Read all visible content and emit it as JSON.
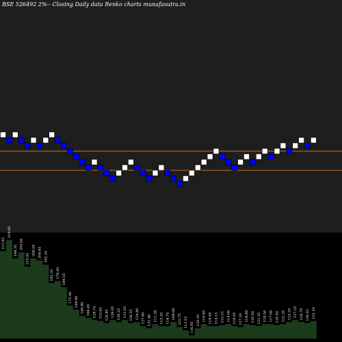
{
  "title": "BSE 526492  2%--  Closing Daily data  Renko  charts munafasutra.in",
  "colors": {
    "background": "#000000",
    "panel": "#1e1e1e",
    "up_brick": "#ffffff",
    "down_brick": "#0000ff",
    "brick_border": "#000000",
    "level_line": "#cc7722",
    "volume_fill": "#1c3a1c",
    "volume_stroke": "#3a7a3a",
    "label_text": "#ffffff"
  },
  "chart_data": [
    {
      "type": "renko",
      "title": "BSE 526492  2%--  Closing Daily data  Renko  charts munafasutra.in",
      "bricks": [
        {
          "d": "up",
          "level": 0
        },
        {
          "d": "down",
          "level": 1
        },
        {
          "d": "up",
          "level": 0
        },
        {
          "d": "down",
          "level": 1
        },
        {
          "d": "down",
          "level": 2
        },
        {
          "d": "up",
          "level": 1
        },
        {
          "d": "down",
          "level": 2
        },
        {
          "d": "up",
          "level": 1
        },
        {
          "d": "up",
          "level": 0
        },
        {
          "d": "down",
          "level": 1
        },
        {
          "d": "down",
          "level": 2
        },
        {
          "d": "down",
          "level": 3
        },
        {
          "d": "down",
          "level": 4
        },
        {
          "d": "down",
          "level": 5
        },
        {
          "d": "down",
          "level": 6
        },
        {
          "d": "up",
          "level": 5
        },
        {
          "d": "down",
          "level": 6
        },
        {
          "d": "down",
          "level": 7
        },
        {
          "d": "down",
          "level": 8
        },
        {
          "d": "up",
          "level": 7
        },
        {
          "d": "up",
          "level": 6
        },
        {
          "d": "up",
          "level": 5
        },
        {
          "d": "down",
          "level": 6
        },
        {
          "d": "down",
          "level": 7
        },
        {
          "d": "down",
          "level": 8
        },
        {
          "d": "up",
          "level": 7
        },
        {
          "d": "up",
          "level": 6
        },
        {
          "d": "down",
          "level": 7
        },
        {
          "d": "down",
          "level": 8
        },
        {
          "d": "down",
          "level": 9
        },
        {
          "d": "up",
          "level": 8
        },
        {
          "d": "up",
          "level": 7
        },
        {
          "d": "up",
          "level": 6
        },
        {
          "d": "up",
          "level": 5
        },
        {
          "d": "up",
          "level": 4
        },
        {
          "d": "up",
          "level": 3
        },
        {
          "d": "down",
          "level": 4
        },
        {
          "d": "down",
          "level": 5
        },
        {
          "d": "down",
          "level": 6
        },
        {
          "d": "up",
          "level": 5
        },
        {
          "d": "up",
          "level": 4
        },
        {
          "d": "down",
          "level": 5
        },
        {
          "d": "up",
          "level": 4
        },
        {
          "d": "up",
          "level": 3
        },
        {
          "d": "down",
          "level": 4
        },
        {
          "d": "up",
          "level": 3
        },
        {
          "d": "up",
          "level": 2
        },
        {
          "d": "down",
          "level": 3
        },
        {
          "d": "up",
          "level": 2
        },
        {
          "d": "up",
          "level": 1
        },
        {
          "d": "down",
          "level": 2
        },
        {
          "d": "up",
          "level": 1
        }
      ],
      "level_lines": [
        1,
        4.5
      ]
    },
    {
      "type": "bar",
      "values": [
        0.85,
        0.96,
        0.78,
        0.84,
        0.7,
        0.78,
        0.76,
        0.72,
        0.54,
        0.56,
        0.5,
        0.32,
        0.28,
        0.22,
        0.2,
        0.18,
        0.17,
        0.15,
        0.18,
        0.16,
        0.18,
        0.15,
        0.16,
        0.12,
        0.1,
        0.14,
        0.12,
        0.12,
        0.16,
        0.11,
        0.08,
        0.03,
        0.1,
        0.14,
        0.12,
        0.12,
        0.13,
        0.14,
        0.12,
        0.11,
        0.14,
        0.13,
        0.12,
        0.14,
        0.14,
        0.13,
        0.14,
        0.16,
        0.18,
        0.16,
        0.15,
        0.17
      ],
      "labels": [
        "213.65",
        "219.05",
        "198.35",
        "204.95",
        "210.05",
        "208.05",
        "209.65",
        "192.55",
        "195.35",
        "179.45",
        "189.55",
        "175.40",
        "149.90",
        "146.90",
        "166.45",
        "128.75",
        "153.65",
        "126.85",
        "139.05",
        "130.25",
        "121.65",
        "126.55",
        "124.80",
        "127.60",
        "131.40",
        "111.30",
        "115.35",
        "116.75",
        "108.00",
        "122.75",
        "111.55",
        "116.05",
        "120.35",
        "119.95",
        "118.60",
        "114.15",
        "115.15",
        "114.00",
        "116.05",
        "117.30",
        "118.80",
        "119.50",
        "121.25",
        "120.50",
        "117.00",
        "118.30",
        "122.55",
        "125.35",
        "127.25",
        "126.70",
        "130.55",
        "131.10"
      ]
    }
  ]
}
